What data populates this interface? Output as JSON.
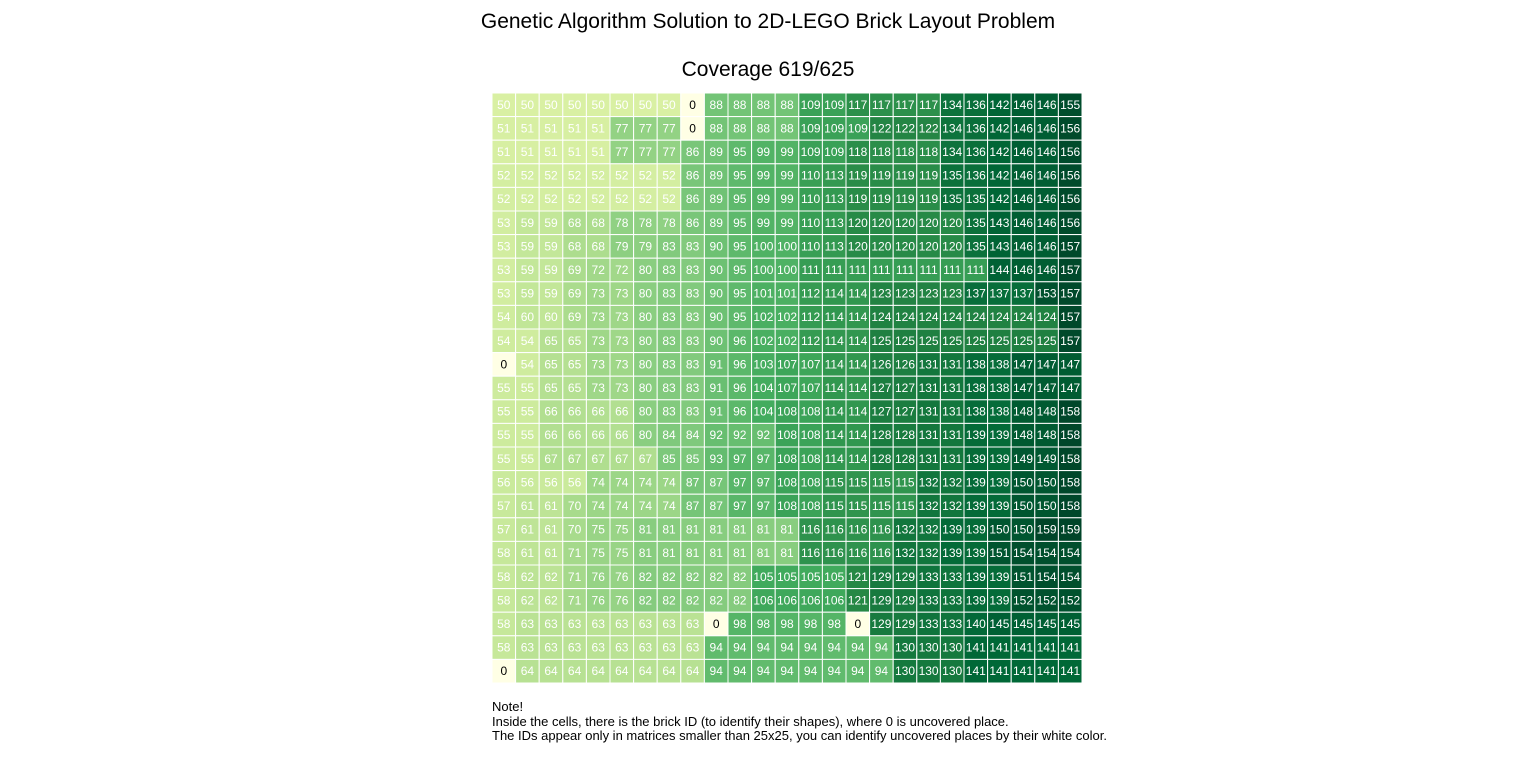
{
  "title": "Genetic Algorithm Solution to 2D-LEGO Brick Layout Problem",
  "subtitle": "Coverage 619/625",
  "note": {
    "lines": [
      "Note!",
      "Inside the cells, there is the brick ID (to identify their shapes), where 0 is uncovered place.",
      "The IDs appear only in matrices smaller than 25x25, you can identify uncovered places by their white color."
    ]
  },
  "chart_data": {
    "type": "heatmap",
    "title": "Coverage 619/625",
    "colormap": "YlGn",
    "color_range": [
      0,
      159
    ],
    "zero_color": "#ffffe5",
    "grid_color": "#ffffff",
    "rows": 25,
    "cols": 25,
    "matrix": [
      [
        50,
        50,
        50,
        50,
        50,
        50,
        50,
        50,
        0,
        88,
        88,
        88,
        88,
        109,
        109,
        117,
        117,
        117,
        117,
        134,
        136,
        142,
        146,
        146,
        155
      ],
      [
        51,
        51,
        51,
        51,
        51,
        77,
        77,
        77,
        0,
        88,
        88,
        88,
        88,
        109,
        109,
        109,
        122,
        122,
        122,
        134,
        136,
        142,
        146,
        146,
        156
      ],
      [
        51,
        51,
        51,
        51,
        51,
        77,
        77,
        77,
        86,
        89,
        95,
        99,
        99,
        109,
        109,
        118,
        118,
        118,
        118,
        134,
        136,
        142,
        146,
        146,
        156
      ],
      [
        52,
        52,
        52,
        52,
        52,
        52,
        52,
        52,
        86,
        89,
        95,
        99,
        99,
        110,
        113,
        119,
        119,
        119,
        119,
        135,
        136,
        142,
        146,
        146,
        156
      ],
      [
        52,
        52,
        52,
        52,
        52,
        52,
        52,
        52,
        86,
        89,
        95,
        99,
        99,
        110,
        113,
        119,
        119,
        119,
        119,
        135,
        135,
        142,
        146,
        146,
        156
      ],
      [
        53,
        59,
        59,
        68,
        68,
        78,
        78,
        78,
        86,
        89,
        95,
        99,
        99,
        110,
        113,
        120,
        120,
        120,
        120,
        120,
        135,
        143,
        146,
        146,
        156
      ],
      [
        53,
        59,
        59,
        68,
        68,
        79,
        79,
        83,
        83,
        90,
        95,
        100,
        100,
        110,
        113,
        120,
        120,
        120,
        120,
        120,
        135,
        143,
        146,
        146,
        157
      ],
      [
        53,
        59,
        59,
        69,
        72,
        72,
        80,
        83,
        83,
        90,
        95,
        100,
        100,
        111,
        111,
        111,
        111,
        111,
        111,
        111,
        111,
        144,
        146,
        146,
        157
      ],
      [
        53,
        59,
        59,
        69,
        73,
        73,
        80,
        83,
        83,
        90,
        95,
        101,
        101,
        112,
        114,
        114,
        123,
        123,
        123,
        123,
        137,
        137,
        137,
        153,
        157
      ],
      [
        54,
        60,
        60,
        69,
        73,
        73,
        80,
        83,
        83,
        90,
        95,
        102,
        102,
        112,
        114,
        114,
        124,
        124,
        124,
        124,
        124,
        124,
        124,
        124,
        157
      ],
      [
        54,
        54,
        65,
        65,
        73,
        73,
        80,
        83,
        83,
        90,
        96,
        102,
        102,
        112,
        114,
        114,
        125,
        125,
        125,
        125,
        125,
        125,
        125,
        125,
        157
      ],
      [
        0,
        54,
        65,
        65,
        73,
        73,
        80,
        83,
        83,
        91,
        96,
        103,
        107,
        107,
        114,
        114,
        126,
        126,
        131,
        131,
        138,
        138,
        147,
        147,
        147
      ],
      [
        55,
        55,
        65,
        65,
        73,
        73,
        80,
        83,
        83,
        91,
        96,
        104,
        107,
        107,
        114,
        114,
        127,
        127,
        131,
        131,
        138,
        138,
        147,
        147,
        147
      ],
      [
        55,
        55,
        66,
        66,
        66,
        66,
        80,
        83,
        83,
        91,
        96,
        104,
        108,
        108,
        114,
        114,
        127,
        127,
        131,
        131,
        138,
        138,
        148,
        148,
        158
      ],
      [
        55,
        55,
        66,
        66,
        66,
        66,
        80,
        84,
        84,
        92,
        92,
        92,
        108,
        108,
        114,
        114,
        128,
        128,
        131,
        131,
        139,
        139,
        148,
        148,
        158
      ],
      [
        55,
        55,
        67,
        67,
        67,
        67,
        67,
        85,
        85,
        93,
        97,
        97,
        108,
        108,
        114,
        114,
        128,
        128,
        131,
        131,
        139,
        139,
        149,
        149,
        158
      ],
      [
        56,
        56,
        56,
        56,
        74,
        74,
        74,
        74,
        87,
        87,
        97,
        97,
        108,
        108,
        115,
        115,
        115,
        115,
        132,
        132,
        139,
        139,
        150,
        150,
        158
      ],
      [
        57,
        61,
        61,
        70,
        74,
        74,
        74,
        74,
        87,
        87,
        97,
        97,
        108,
        108,
        115,
        115,
        115,
        115,
        132,
        132,
        139,
        139,
        150,
        150,
        158
      ],
      [
        57,
        61,
        61,
        70,
        75,
        75,
        81,
        81,
        81,
        81,
        81,
        81,
        81,
        116,
        116,
        116,
        116,
        132,
        132,
        139,
        139,
        150,
        150,
        159,
        159
      ],
      [
        58,
        61,
        61,
        71,
        75,
        75,
        81,
        81,
        81,
        81,
        81,
        81,
        81,
        116,
        116,
        116,
        116,
        132,
        132,
        139,
        139,
        151,
        154,
        154,
        154
      ],
      [
        58,
        62,
        62,
        71,
        76,
        76,
        82,
        82,
        82,
        82,
        82,
        105,
        105,
        105,
        105,
        121,
        129,
        129,
        133,
        133,
        139,
        139,
        151,
        154,
        154
      ],
      [
        58,
        62,
        62,
        71,
        76,
        76,
        82,
        82,
        82,
        82,
        82,
        106,
        106,
        106,
        106,
        121,
        129,
        129,
        133,
        133,
        139,
        139,
        152,
        152,
        152
      ],
      [
        58,
        63,
        63,
        63,
        63,
        63,
        63,
        63,
        63,
        0,
        98,
        98,
        98,
        98,
        98,
        0,
        129,
        129,
        133,
        133,
        140,
        145,
        145,
        145,
        145
      ],
      [
        58,
        63,
        63,
        63,
        63,
        63,
        63,
        63,
        63,
        94,
        94,
        94,
        94,
        94,
        94,
        94,
        94,
        130,
        130,
        130,
        141,
        141,
        141,
        141,
        141
      ],
      [
        0,
        64,
        64,
        64,
        64,
        64,
        64,
        64,
        64,
        94,
        94,
        94,
        94,
        94,
        94,
        94,
        94,
        130,
        130,
        130,
        141,
        141,
        141,
        141,
        141
      ]
    ]
  }
}
